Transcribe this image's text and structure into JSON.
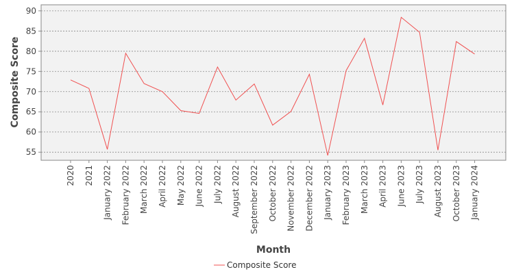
{
  "chart_data": {
    "type": "line",
    "xlabel": "Month",
    "ylabel": "Composite Score",
    "ylim": [
      53,
      91.5
    ],
    "yticks": [
      55,
      60,
      65,
      70,
      75,
      80,
      85,
      90
    ],
    "grid": true,
    "legend_position": "bottom-center",
    "categories": [
      "2020",
      "2021",
      "January 2022",
      "February 2022",
      "March 2022",
      "April 2022",
      "May 2022",
      "June 2022",
      "July 2022",
      "August 2022",
      "September 2022",
      "October 2022",
      "November 2022",
      "December 2022",
      "January 2023",
      "February 2023",
      "March 2023",
      "April 2023",
      "June 2023",
      "July 2023",
      "August 2023",
      "October 2023",
      "January 2024"
    ],
    "series": [
      {
        "name": "Composite Score",
        "color": "#f05050",
        "values": [
          72.9,
          70.8,
          55.7,
          79.5,
          72.0,
          70.0,
          65.3,
          64.6,
          76.1,
          67.9,
          71.9,
          61.7,
          65.1,
          74.3,
          54.2,
          75.2,
          83.2,
          66.7,
          88.4,
          84.7,
          55.5,
          82.4,
          79.3
        ]
      }
    ]
  },
  "colors": {
    "plot_background": "#f2f2f2",
    "grid": "#888888",
    "line": "#f05050"
  }
}
